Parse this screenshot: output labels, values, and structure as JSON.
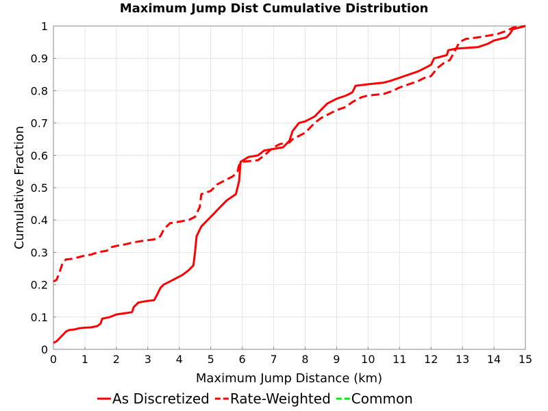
{
  "chart_data": {
    "type": "line",
    "title": "Maximum Jump Dist Cumulative Distribution",
    "xlabel": "Maximum Jump Distance (km)",
    "ylabel": "Cumulative Fraction",
    "xlim": [
      0,
      15
    ],
    "ylim": [
      0,
      1
    ],
    "xticks": [
      0,
      1,
      2,
      3,
      4,
      5,
      6,
      7,
      8,
      9,
      10,
      11,
      12,
      13,
      14,
      15
    ],
    "yticks": [
      0,
      0.1,
      0.2,
      0.3,
      0.4,
      0.5,
      0.6,
      0.7,
      0.8,
      0.9,
      1
    ],
    "ytick_labels": [
      "0",
      "0.1",
      "0.2",
      "0.3",
      "0.4",
      "0.5",
      "0.6",
      "0.7",
      "0.8",
      "0.9",
      "1"
    ],
    "grid": true,
    "legend_position": "bottom",
    "series": [
      {
        "name": "As Discretized",
        "color": "#ff0000",
        "dash": "solid",
        "points": [
          [
            0,
            0.02
          ],
          [
            0.1,
            0.025
          ],
          [
            0.2,
            0.035
          ],
          [
            0.3,
            0.045
          ],
          [
            0.4,
            0.055
          ],
          [
            0.5,
            0.06
          ],
          [
            0.7,
            0.062
          ],
          [
            0.8,
            0.065
          ],
          [
            1.0,
            0.067
          ],
          [
            1.2,
            0.068
          ],
          [
            1.4,
            0.072
          ],
          [
            1.5,
            0.08
          ],
          [
            1.55,
            0.095
          ],
          [
            1.8,
            0.1
          ],
          [
            2.0,
            0.108
          ],
          [
            2.3,
            0.112
          ],
          [
            2.5,
            0.115
          ],
          [
            2.55,
            0.13
          ],
          [
            2.7,
            0.145
          ],
          [
            3.0,
            0.15
          ],
          [
            3.2,
            0.152
          ],
          [
            3.3,
            0.17
          ],
          [
            3.4,
            0.19
          ],
          [
            3.5,
            0.2
          ],
          [
            3.7,
            0.21
          ],
          [
            3.9,
            0.22
          ],
          [
            4.1,
            0.23
          ],
          [
            4.3,
            0.245
          ],
          [
            4.45,
            0.26
          ],
          [
            4.5,
            0.3
          ],
          [
            4.55,
            0.35
          ],
          [
            4.7,
            0.38
          ],
          [
            4.9,
            0.4
          ],
          [
            5.1,
            0.42
          ],
          [
            5.3,
            0.44
          ],
          [
            5.5,
            0.46
          ],
          [
            5.8,
            0.48
          ],
          [
            5.9,
            0.52
          ],
          [
            5.95,
            0.58
          ],
          [
            6.2,
            0.595
          ],
          [
            6.5,
            0.6
          ],
          [
            6.7,
            0.615
          ],
          [
            7.0,
            0.62
          ],
          [
            7.3,
            0.625
          ],
          [
            7.5,
            0.645
          ],
          [
            7.6,
            0.675
          ],
          [
            7.8,
            0.7
          ],
          [
            8.0,
            0.705
          ],
          [
            8.3,
            0.72
          ],
          [
            8.5,
            0.74
          ],
          [
            8.7,
            0.76
          ],
          [
            9.0,
            0.775
          ],
          [
            9.3,
            0.785
          ],
          [
            9.5,
            0.795
          ],
          [
            9.6,
            0.815
          ],
          [
            10.0,
            0.82
          ],
          [
            10.5,
            0.825
          ],
          [
            10.7,
            0.83
          ],
          [
            11.0,
            0.84
          ],
          [
            11.3,
            0.85
          ],
          [
            11.6,
            0.86
          ],
          [
            11.8,
            0.87
          ],
          [
            12.0,
            0.88
          ],
          [
            12.1,
            0.9
          ],
          [
            12.5,
            0.91
          ],
          [
            12.55,
            0.925
          ],
          [
            12.8,
            0.93
          ],
          [
            13.5,
            0.935
          ],
          [
            13.8,
            0.945
          ],
          [
            14.0,
            0.955
          ],
          [
            14.4,
            0.965
          ],
          [
            14.5,
            0.975
          ],
          [
            14.6,
            0.99
          ],
          [
            15.0,
            1.0
          ]
        ]
      },
      {
        "name": "Rate-Weighted",
        "color": "#ff0000",
        "dash": "dashed",
        "points": [
          [
            0,
            0.21
          ],
          [
            0.1,
            0.215
          ],
          [
            0.2,
            0.24
          ],
          [
            0.3,
            0.27
          ],
          [
            0.4,
            0.278
          ],
          [
            0.6,
            0.28
          ],
          [
            0.8,
            0.285
          ],
          [
            1.0,
            0.29
          ],
          [
            1.2,
            0.293
          ],
          [
            1.4,
            0.3
          ],
          [
            1.7,
            0.305
          ],
          [
            1.8,
            0.315
          ],
          [
            2.0,
            0.32
          ],
          [
            2.3,
            0.325
          ],
          [
            2.5,
            0.33
          ],
          [
            2.8,
            0.335
          ],
          [
            3.2,
            0.34
          ],
          [
            3.4,
            0.35
          ],
          [
            3.5,
            0.37
          ],
          [
            3.7,
            0.39
          ],
          [
            4.0,
            0.395
          ],
          [
            4.3,
            0.4
          ],
          [
            4.5,
            0.41
          ],
          [
            4.65,
            0.44
          ],
          [
            4.7,
            0.48
          ],
          [
            5.0,
            0.49
          ],
          [
            5.2,
            0.51
          ],
          [
            5.5,
            0.525
          ],
          [
            5.7,
            0.535
          ],
          [
            5.85,
            0.55
          ],
          [
            5.9,
            0.57
          ],
          [
            6.0,
            0.58
          ],
          [
            6.5,
            0.585
          ],
          [
            6.7,
            0.6
          ],
          [
            7.0,
            0.625
          ],
          [
            7.2,
            0.635
          ],
          [
            7.5,
            0.64
          ],
          [
            7.6,
            0.65
          ],
          [
            7.8,
            0.66
          ],
          [
            8.0,
            0.67
          ],
          [
            8.3,
            0.7
          ],
          [
            8.5,
            0.715
          ],
          [
            8.8,
            0.73
          ],
          [
            9.0,
            0.74
          ],
          [
            9.3,
            0.75
          ],
          [
            9.5,
            0.765
          ],
          [
            9.8,
            0.78
          ],
          [
            10.0,
            0.785
          ],
          [
            10.5,
            0.79
          ],
          [
            10.8,
            0.8
          ],
          [
            11.0,
            0.81
          ],
          [
            11.3,
            0.82
          ],
          [
            11.6,
            0.83
          ],
          [
            11.8,
            0.84
          ],
          [
            12.0,
            0.845
          ],
          [
            12.2,
            0.87
          ],
          [
            12.4,
            0.885
          ],
          [
            12.6,
            0.895
          ],
          [
            12.8,
            0.93
          ],
          [
            12.9,
            0.95
          ],
          [
            13.1,
            0.96
          ],
          [
            13.5,
            0.965
          ],
          [
            13.8,
            0.97
          ],
          [
            14.1,
            0.975
          ],
          [
            14.4,
            0.985
          ],
          [
            14.6,
            0.995
          ],
          [
            15.0,
            1.0
          ]
        ]
      },
      {
        "name": "Common",
        "color": "#00ee00",
        "dash": "dashed",
        "points": []
      }
    ]
  }
}
